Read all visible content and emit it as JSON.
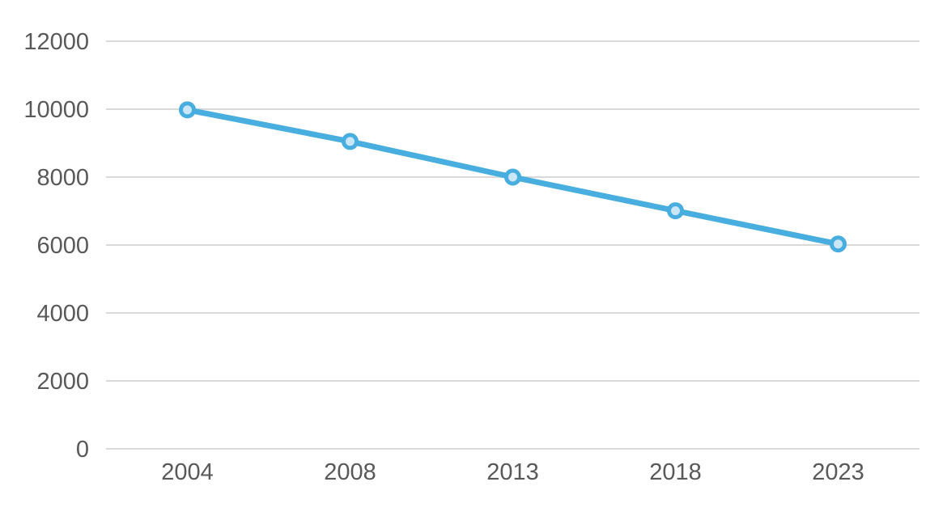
{
  "chart_data": {
    "type": "line",
    "categories": [
      "2004",
      "2008",
      "2013",
      "2018",
      "2023"
    ],
    "series": [
      {
        "name": "series-1",
        "values": [
          9980,
          9050,
          8000,
          7010,
          6030
        ]
      }
    ],
    "title": "",
    "xlabel": "",
    "ylabel": "",
    "ylim": [
      0,
      12000
    ],
    "ytick_step": 2000,
    "ytick_labels": [
      "0",
      "2000",
      "4000",
      "6000",
      "8000",
      "10000",
      "12000"
    ],
    "grid": true,
    "legend": false,
    "legend_position": "none",
    "colors": {
      "line": "#48ADDF",
      "marker_fill": "#C9E7F7",
      "gridline": "#D9D9D9",
      "tick_text": "#595959",
      "background": "#FFFFFF"
    }
  }
}
